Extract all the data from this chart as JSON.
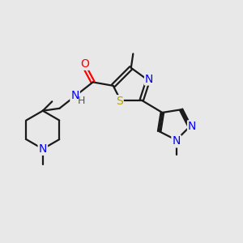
{
  "bg_color": "#e8e8e8",
  "bond_color": "#1a1a1a",
  "atom_colors": {
    "N": "#0000ff",
    "O": "#ff0000",
    "S": "#b8a000",
    "C": "#1a1a1a",
    "H": "#555555"
  },
  "font_size": 10,
  "fig_size": [
    3.0,
    3.0
  ],
  "dpi": 100,
  "lw": 1.6
}
